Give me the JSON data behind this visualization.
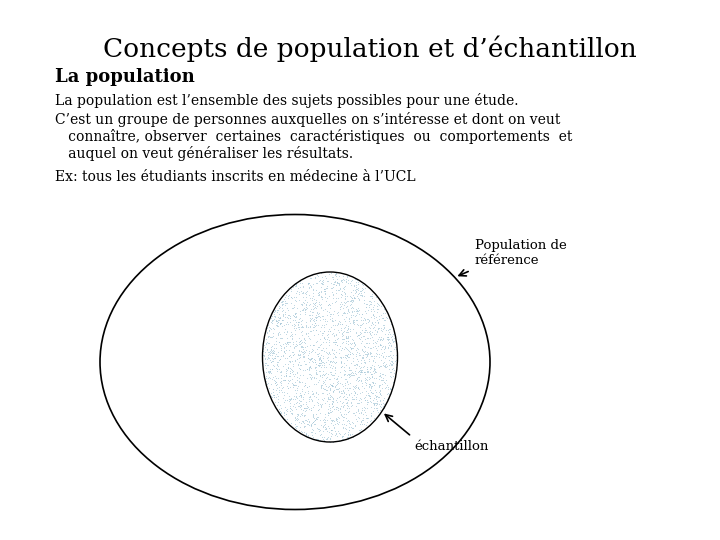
{
  "title": "Concepts de population et d’échantillon",
  "subtitle": "La population",
  "line1": "La population est l’ensemble des sujets possibles pour une étude.",
  "line2a": "C’est un groupe de personnes auxquelles on s’intéresse et dont on veut",
  "line2b": "   connaître, observer  certaines  caractéristiques  ou  comportements  et",
  "line2c": "   auquel on veut généraliser les résultats.",
  "line3": "Ex: tous les étudiants inscrits en médecine à l’UCL",
  "label_pop": "Population de\nréférence",
  "label_sample": "échantillon",
  "bg_color": "#ffffff",
  "text_color": "#000000",
  "title_fontsize": 19,
  "subtitle_fontsize": 13,
  "body_fontsize": 10,
  "label_fontsize": 9.5
}
